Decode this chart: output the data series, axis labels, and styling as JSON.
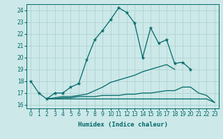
{
  "xlabel": "Humidex (Indice chaleur)",
  "bg_color": "#cce8e8",
  "line_color": "#006868",
  "grid_color": "#aacfcf",
  "xlim": [
    -0.5,
    23.5
  ],
  "ylim": [
    15.7,
    24.5
  ],
  "yticks": [
    16,
    17,
    18,
    19,
    20,
    21,
    22,
    23,
    24
  ],
  "xticks": [
    0,
    1,
    2,
    3,
    4,
    5,
    6,
    7,
    8,
    9,
    10,
    11,
    12,
    13,
    14,
    15,
    16,
    17,
    18,
    19,
    20,
    21,
    22,
    23
  ],
  "line1_x": [
    0,
    1,
    2,
    3,
    4,
    5,
    6,
    7,
    8,
    9,
    10,
    11,
    12,
    13,
    14,
    15,
    16,
    17,
    18,
    19,
    20
  ],
  "line1_y": [
    18.0,
    17.0,
    16.5,
    17.0,
    17.0,
    17.5,
    17.8,
    19.8,
    21.5,
    22.3,
    23.2,
    24.2,
    23.8,
    22.9,
    20.0,
    22.5,
    21.2,
    21.5,
    19.5,
    19.6,
    19.0
  ],
  "line2_x": [
    2,
    3,
    4,
    5,
    6,
    7,
    8,
    9,
    10,
    11,
    12,
    13,
    14,
    15,
    16,
    17,
    18,
    19,
    20,
    21,
    22,
    23
  ],
  "line2_y": [
    16.5,
    16.6,
    16.7,
    16.7,
    16.8,
    16.9,
    17.2,
    17.5,
    17.9,
    18.1,
    18.3,
    18.5,
    18.8,
    19.0,
    19.2,
    19.4,
    19.0,
    null,
    null,
    null,
    null,
    null
  ],
  "line3_x": [
    2,
    3,
    4,
    5,
    6,
    7,
    8,
    9,
    10,
    11,
    12,
    13,
    14,
    15,
    16,
    17,
    18,
    19,
    20,
    21,
    22,
    23
  ],
  "line3_y": [
    16.5,
    16.5,
    16.6,
    16.6,
    16.7,
    16.7,
    16.7,
    16.8,
    16.8,
    16.8,
    16.9,
    16.9,
    17.0,
    17.0,
    17.1,
    17.2,
    17.2,
    17.5,
    17.5,
    17.0,
    16.8,
    16.2
  ],
  "line4_x": [
    2,
    3,
    4,
    5,
    6,
    7,
    8,
    9,
    10,
    11,
    12,
    13,
    14,
    15,
    16,
    17,
    18,
    19,
    20,
    21,
    22,
    23
  ],
  "line4_y": [
    16.5,
    16.5,
    16.5,
    16.5,
    16.5,
    16.5,
    16.5,
    16.5,
    16.5,
    16.5,
    16.5,
    16.5,
    16.5,
    16.5,
    16.5,
    16.5,
    16.5,
    16.5,
    16.5,
    16.5,
    16.5,
    16.2
  ]
}
